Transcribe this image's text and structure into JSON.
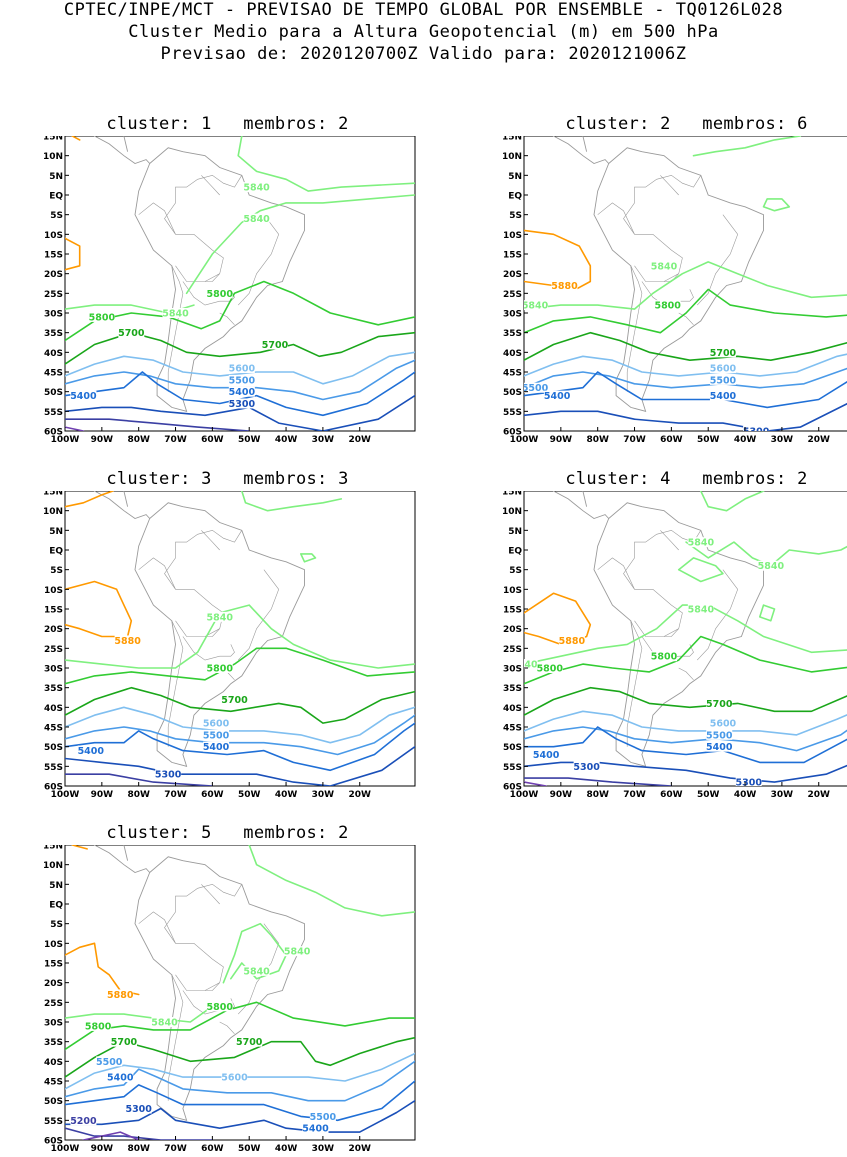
{
  "header": {
    "line1": "CPTEC/INPE/MCT - PREVISAO DE TEMPO GLOBAL POR ENSEMBLE - TQ0126L028",
    "line2": "Cluster Medio para a Altura Geopotencial (m) em 500 hPa",
    "line3": "Previsao de: 2020120700Z    Valido para: 2020121006Z"
  },
  "axes": {
    "lat_labels": [
      "15N",
      "10N",
      "5N",
      "EQ",
      "5S",
      "10S",
      "15S",
      "20S",
      "25S",
      "30S",
      "35S",
      "40S",
      "45S",
      "50S",
      "55S",
      "60S"
    ],
    "lon_labels": [
      "100W",
      "90W",
      "80W",
      "70W",
      "60W",
      "50W",
      "40W",
      "30W",
      "20W"
    ]
  },
  "colors": {
    "5880": "#ff9900",
    "5840": "#7ff07f",
    "5800": "#33cc33",
    "5700": "#1aa61a",
    "5600": "#80bff0",
    "5500": "#4a9ae8",
    "5400": "#1f6fd6",
    "5300": "#1a4fb8",
    "5200": "#3b3fa3",
    "5100": "#7040b0",
    "coast": "#9a9a9a"
  },
  "panels": [
    {
      "cluster_label": "cluster: 1",
      "members_label": "membros: 2",
      "labels": [
        "5840",
        "5840",
        "5840",
        "5800",
        "5800",
        "5700",
        "5700",
        "5600",
        "5500",
        "5400",
        "5400",
        "5300"
      ]
    },
    {
      "cluster_label": "cluster: 2",
      "members_label": "membros: 6",
      "labels": [
        "5880",
        "5840",
        "5840",
        "5800",
        "5700",
        "5600",
        "5500",
        "5500",
        "5400",
        "5400",
        "5300"
      ]
    },
    {
      "cluster_label": "cluster: 3",
      "members_label": "membros: 3",
      "labels": [
        "5880",
        "5840",
        "5800",
        "5700",
        "5600",
        "5500",
        "5400",
        "5400",
        "5300"
      ]
    },
    {
      "cluster_label": "cluster: 4",
      "members_label": "membros: 2",
      "labels": [
        "5840",
        "5840",
        "5840",
        "5880",
        "840",
        "5800",
        "5800",
        "5700",
        "5600",
        "5500",
        "5400",
        "5400",
        "5300",
        "5300"
      ]
    },
    {
      "cluster_label": "cluster: 5",
      "members_label": "membros: 2",
      "labels": [
        "5840",
        "5840",
        "5880",
        "5840",
        "5800",
        "5800",
        "5700",
        "5700",
        "5500",
        "5600",
        "5400",
        "5300",
        "5500",
        "5400",
        "5200"
      ]
    }
  ]
}
